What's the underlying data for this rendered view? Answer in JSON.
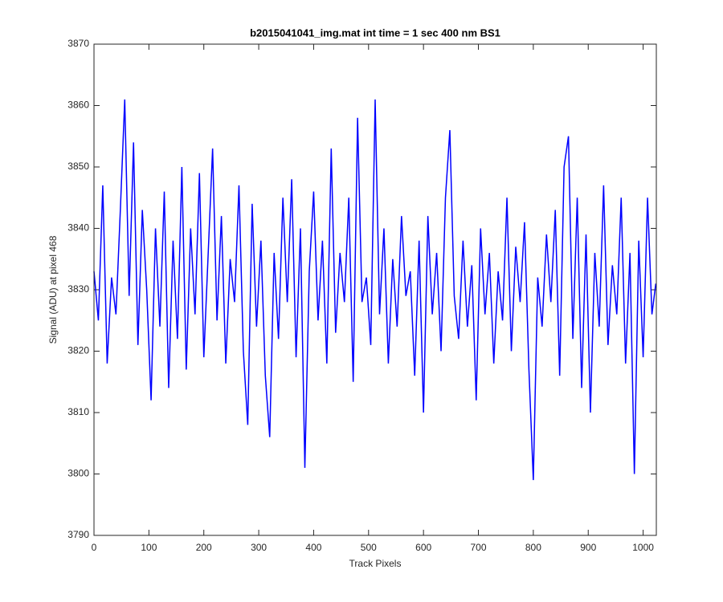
{
  "chart_data": {
    "type": "line",
    "title": "b2015041041_img.mat int time = 1 sec  400 nm BS1",
    "xlabel": "Track Pixels",
    "ylabel": "Signal (ADU) at pixel 468",
    "x": [
      0,
      8,
      16,
      24,
      32,
      40,
      48,
      56,
      64,
      72,
      80,
      88,
      96,
      104,
      112,
      120,
      128,
      136,
      144,
      152,
      160,
      168,
      176,
      184,
      192,
      200,
      208,
      216,
      224,
      232,
      240,
      248,
      256,
      264,
      272,
      280,
      288,
      296,
      304,
      312,
      320,
      328,
      336,
      344,
      352,
      360,
      368,
      376,
      384,
      392,
      400,
      408,
      416,
      424,
      432,
      440,
      448,
      456,
      464,
      472,
      480,
      488,
      496,
      504,
      512,
      520,
      528,
      536,
      544,
      552,
      560,
      568,
      576,
      584,
      592,
      600,
      608,
      616,
      624,
      632,
      640,
      648,
      656,
      664,
      672,
      680,
      688,
      696,
      704,
      712,
      720,
      728,
      736,
      744,
      752,
      760,
      768,
      776,
      784,
      792,
      800,
      808,
      816,
      824,
      832,
      840,
      848,
      856,
      864,
      872,
      880,
      888,
      896,
      904,
      912,
      920,
      928,
      936,
      944,
      952,
      960,
      968,
      976,
      984,
      992,
      1000,
      1008,
      1016,
      1023
    ],
    "series": [
      {
        "color": "#0000ff",
        "values": [
          3833,
          3825,
          3847,
          3818,
          3832,
          3826,
          3843,
          3861,
          3829,
          3854,
          3821,
          3843,
          3830,
          3812,
          3840,
          3824,
          3846,
          3814,
          3838,
          3822,
          3850,
          3817,
          3840,
          3826,
          3849,
          3819,
          3836,
          3853,
          3825,
          3842,
          3818,
          3835,
          3828,
          3847,
          3820,
          3808,
          3844,
          3824,
          3838,
          3816,
          3806,
          3836,
          3822,
          3845,
          3828,
          3848,
          3819,
          3840,
          3801,
          3833,
          3846,
          3825,
          3838,
          3818,
          3853,
          3823,
          3836,
          3828,
          3845,
          3815,
          3858,
          3828,
          3832,
          3821,
          3861,
          3826,
          3840,
          3818,
          3835,
          3824,
          3842,
          3829,
          3833,
          3816,
          3838,
          3810,
          3842,
          3826,
          3836,
          3820,
          3845,
          3856,
          3829,
          3822,
          3838,
          3824,
          3834,
          3812,
          3840,
          3826,
          3836,
          3818,
          3833,
          3825,
          3845,
          3820,
          3837,
          3828,
          3841,
          3817,
          3799,
          3832,
          3824,
          3839,
          3828,
          3843,
          3816,
          3850,
          3855,
          3822,
          3845,
          3814,
          3839,
          3810,
          3836,
          3824,
          3847,
          3821,
          3834,
          3826,
          3845,
          3818,
          3836,
          3800,
          3838,
          3819,
          3845,
          3826,
          3831
        ]
      }
    ],
    "xlim": [
      0,
      1024
    ],
    "ylim": [
      3790,
      3870
    ],
    "xticks": [
      0,
      100,
      200,
      300,
      400,
      500,
      600,
      700,
      800,
      900,
      1000
    ],
    "yticks": [
      3790,
      3800,
      3810,
      3820,
      3830,
      3840,
      3850,
      3860,
      3870
    ]
  }
}
